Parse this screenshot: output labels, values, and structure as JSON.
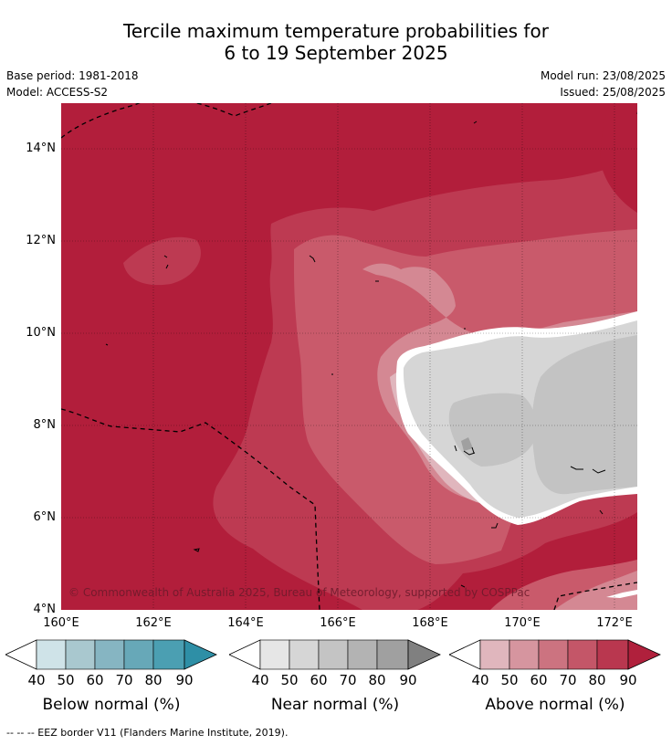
{
  "title": {
    "line1": "Tercile maximum temperature probabilities for",
    "line2": "6 to 19 September 2025"
  },
  "info": {
    "base_period": "Base period: 1981-2018",
    "model": "Model: ACCESS-S2",
    "model_run": "Model run: 23/08/2025",
    "issued": "Issued: 25/08/2025"
  },
  "axes": {
    "lat_labels": [
      "14°N",
      "12°N",
      "10°N",
      "8°N",
      "6°N",
      "4°N"
    ],
    "lon_labels": [
      "160°E",
      "162°E",
      "164°E",
      "166°E",
      "168°E",
      "170°E",
      "172°E"
    ]
  },
  "copyright": "© Commonwealth of Australia 2025, Bureau of Meteorology, supported by COSPPac",
  "colorbars": [
    {
      "title": "Below normal (%)",
      "ticks": [
        "40",
        "50",
        "60",
        "70",
        "80",
        "90"
      ],
      "colors": [
        "#cfe3e8",
        "#a9c8cf",
        "#86b5c2",
        "#67a8b8",
        "#4b9fb2",
        "#2e8fa6"
      ]
    },
    {
      "title": "Near normal (%)",
      "ticks": [
        "40",
        "50",
        "60",
        "70",
        "80",
        "90"
      ],
      "colors": [
        "#e6e6e6",
        "#d6d6d6",
        "#c4c4c4",
        "#b3b3b3",
        "#a0a0a0",
        "#808080"
      ]
    },
    {
      "title": "Above normal (%)",
      "ticks": [
        "40",
        "50",
        "60",
        "70",
        "80",
        "90"
      ],
      "colors": [
        "#e0b6bd",
        "#d6959f",
        "#cc7380",
        "#c45668",
        "#b9374f",
        "#b0203c"
      ]
    }
  ],
  "footer": "-- -- -- EEZ border V11 (Flanders Marine Institute, 2019)."
}
